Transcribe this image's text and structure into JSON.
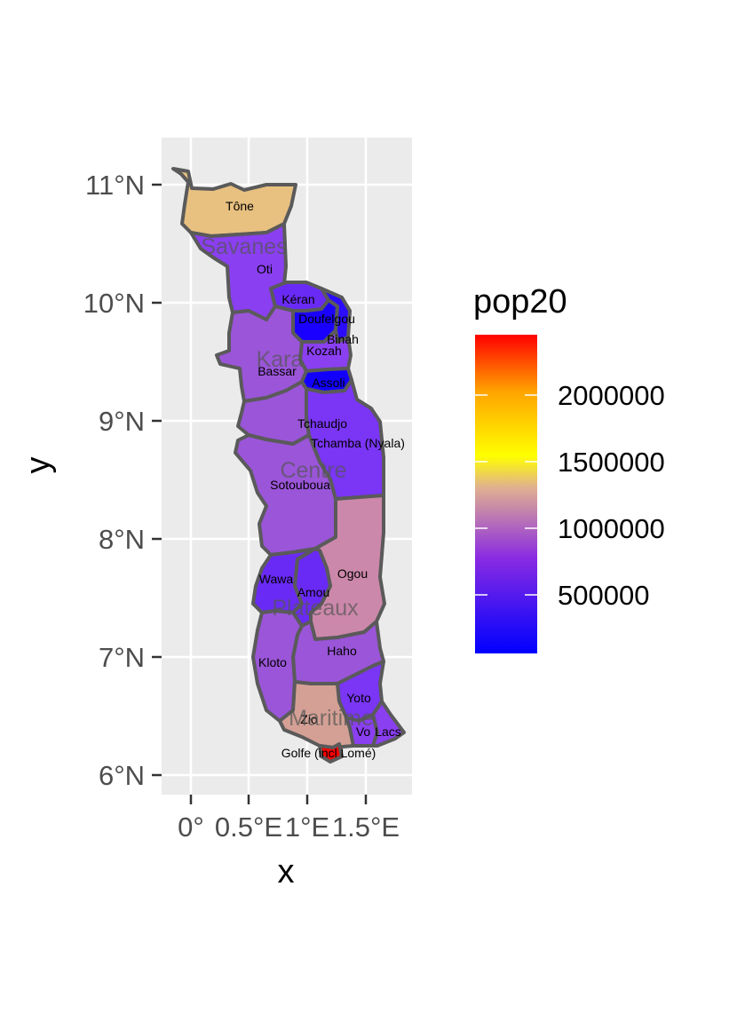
{
  "chart_data": {
    "type": "choropleth",
    "fill_variable": "pop20",
    "xlabel": "x",
    "ylabel": "y",
    "x_ticks": [
      "0°",
      "0.5°E",
      "1°E",
      "1.5°E"
    ],
    "y_ticks": [
      "11°N",
      "10°N",
      "9°N",
      "8°N",
      "7°N",
      "6°N"
    ],
    "grid": true,
    "legend": {
      "title": "pop20",
      "position": "right",
      "labels": [
        "2000000",
        "1500000",
        "1000000",
        "500000"
      ],
      "colors": [
        "#0000ff",
        "#8a2be2",
        "#ffff00",
        "#ffa500",
        "#ff0000"
      ]
    },
    "regions": [
      {
        "name": "Savanes"
      },
      {
        "name": "Kara"
      },
      {
        "name": "Centre"
      },
      {
        "name": "Plateaux"
      },
      {
        "name": "Maritime"
      }
    ],
    "prefectures": [
      {
        "name": "Tône",
        "color": "#e8c080",
        "pop20": 950000
      },
      {
        "name": "Oti",
        "color": "#8a3ff0",
        "pop20": 330000
      },
      {
        "name": "Kéran",
        "color": "#6a2af5",
        "pop20": 180000
      },
      {
        "name": "Doufelgou",
        "color": "#1a00ff",
        "pop20": 120000
      },
      {
        "name": "Binah",
        "color": "#2c0cff",
        "pop20": 110000
      },
      {
        "name": "Kozah",
        "color": "#8a3ff0",
        "pop20": 300000
      },
      {
        "name": "Bassar",
        "color": "#9a55d8",
        "pop20": 350000
      },
      {
        "name": "Assoli",
        "color": "#1200ff",
        "pop20": 100000
      },
      {
        "name": "Tchaudjo",
        "color": "#9a55d8",
        "pop20": 330000
      },
      {
        "name": "Tchamba (Nyala)",
        "color": "#7a35f5",
        "pop20": 220000
      },
      {
        "name": "Sotouboua",
        "color": "#9a55d8",
        "pop20": 340000
      },
      {
        "name": "Ogou",
        "color": "#cc88aa",
        "pop20": 650000
      },
      {
        "name": "Wawa",
        "color": "#6a2af5",
        "pop20": 200000
      },
      {
        "name": "Amou",
        "color": "#6a2af5",
        "pop20": 190000
      },
      {
        "name": "Haho",
        "color": "#9a55d8",
        "pop20": 340000
      },
      {
        "name": "Kloto",
        "color": "#9a55d8",
        "pop20": 330000
      },
      {
        "name": "Yoto",
        "color": "#7a35f5",
        "pop20": 220000
      },
      {
        "name": "Zio",
        "color": "#d4a095",
        "pop20": 750000
      },
      {
        "name": "Vo",
        "color": "#8a3ff0",
        "pop20": 290000
      },
      {
        "name": "Lacs",
        "color": "#8a3ff0",
        "pop20": 300000
      },
      {
        "name": "Golfe (incl Lomé)",
        "color": "#ff0000",
        "pop20": 2400000
      }
    ]
  }
}
